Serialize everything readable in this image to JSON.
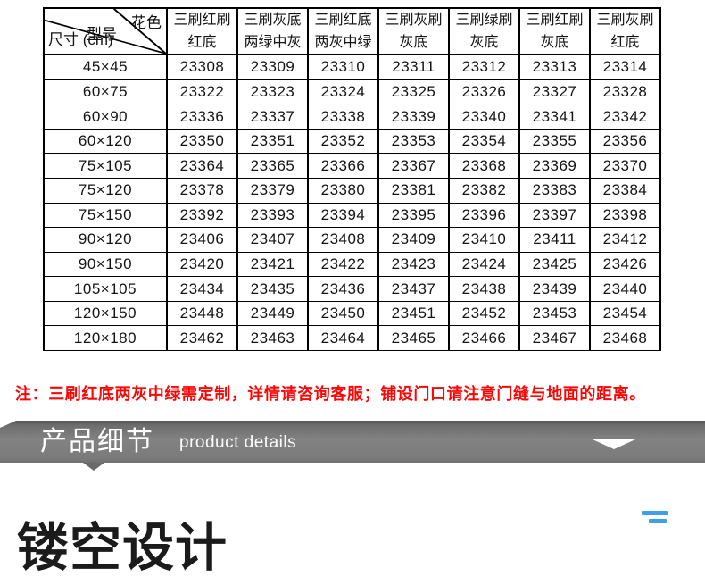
{
  "colors": {
    "note_red": "#fb0606",
    "banner_gray": "#7d7d7d",
    "accent_blue": "#3f9fe8",
    "table_border": "#000000"
  },
  "spec_table": {
    "corner_labels": {
      "pattern": "花色",
      "model": "型号",
      "size": "尺寸 (cm)"
    },
    "column_headers": [
      {
        "line1": "三刷红刷",
        "line2": "红底"
      },
      {
        "line1": "三刷灰底",
        "line2": "两绿中灰"
      },
      {
        "line1": "三刷红底",
        "line2": "两灰中绿"
      },
      {
        "line1": "三刷灰刷",
        "line2": "灰底"
      },
      {
        "line1": "三刷绿刷",
        "line2": "灰底"
      },
      {
        "line1": "三刷红刷",
        "line2": "灰底"
      },
      {
        "line1": "三刷灰刷",
        "line2": "红底"
      }
    ],
    "rows": [
      {
        "size": "45×45",
        "codes": [
          "23308",
          "23309",
          "23310",
          "23311",
          "23312",
          "23313",
          "23314"
        ]
      },
      {
        "size": "60×75",
        "codes": [
          "23322",
          "23323",
          "23324",
          "23325",
          "23326",
          "23327",
          "23328"
        ]
      },
      {
        "size": "60×90",
        "codes": [
          "23336",
          "23337",
          "23338",
          "23339",
          "23340",
          "23341",
          "23342"
        ]
      },
      {
        "size": "60×120",
        "codes": [
          "23350",
          "23351",
          "23352",
          "23353",
          "23354",
          "23355",
          "23356"
        ]
      },
      {
        "size": "75×105",
        "codes": [
          "23364",
          "23365",
          "23366",
          "23367",
          "23368",
          "23369",
          "23370"
        ]
      },
      {
        "size": "75×120",
        "codes": [
          "23378",
          "23379",
          "23380",
          "23381",
          "23382",
          "23383",
          "23384"
        ]
      },
      {
        "size": "75×150",
        "codes": [
          "23392",
          "23393",
          "23394",
          "23395",
          "23396",
          "23397",
          "23398"
        ]
      },
      {
        "size": "90×120",
        "codes": [
          "23406",
          "23407",
          "23408",
          "23409",
          "23410",
          "23411",
          "23412"
        ]
      },
      {
        "size": "90×150",
        "codes": [
          "23420",
          "23421",
          "23422",
          "23423",
          "23424",
          "23425",
          "23426"
        ]
      },
      {
        "size": "105×105",
        "codes": [
          "23434",
          "23435",
          "23436",
          "23437",
          "23438",
          "23439",
          "23440"
        ]
      },
      {
        "size": "120×150",
        "codes": [
          "23448",
          "23449",
          "23450",
          "23451",
          "23452",
          "23453",
          "23454"
        ]
      },
      {
        "size": "120×180",
        "codes": [
          "23462",
          "23463",
          "23464",
          "23465",
          "23466",
          "23467",
          "23468"
        ]
      }
    ]
  },
  "note": {
    "text": "注：三刷红底两灰中绿需定制，详情请咨询客服；铺设门口请注意门缝与地面的距离。"
  },
  "banner": {
    "title_cn": "产品细节",
    "title_en": "product details",
    "chevron_icon": "chevron-down"
  },
  "detail_section": {
    "heading": "镂空设计"
  }
}
